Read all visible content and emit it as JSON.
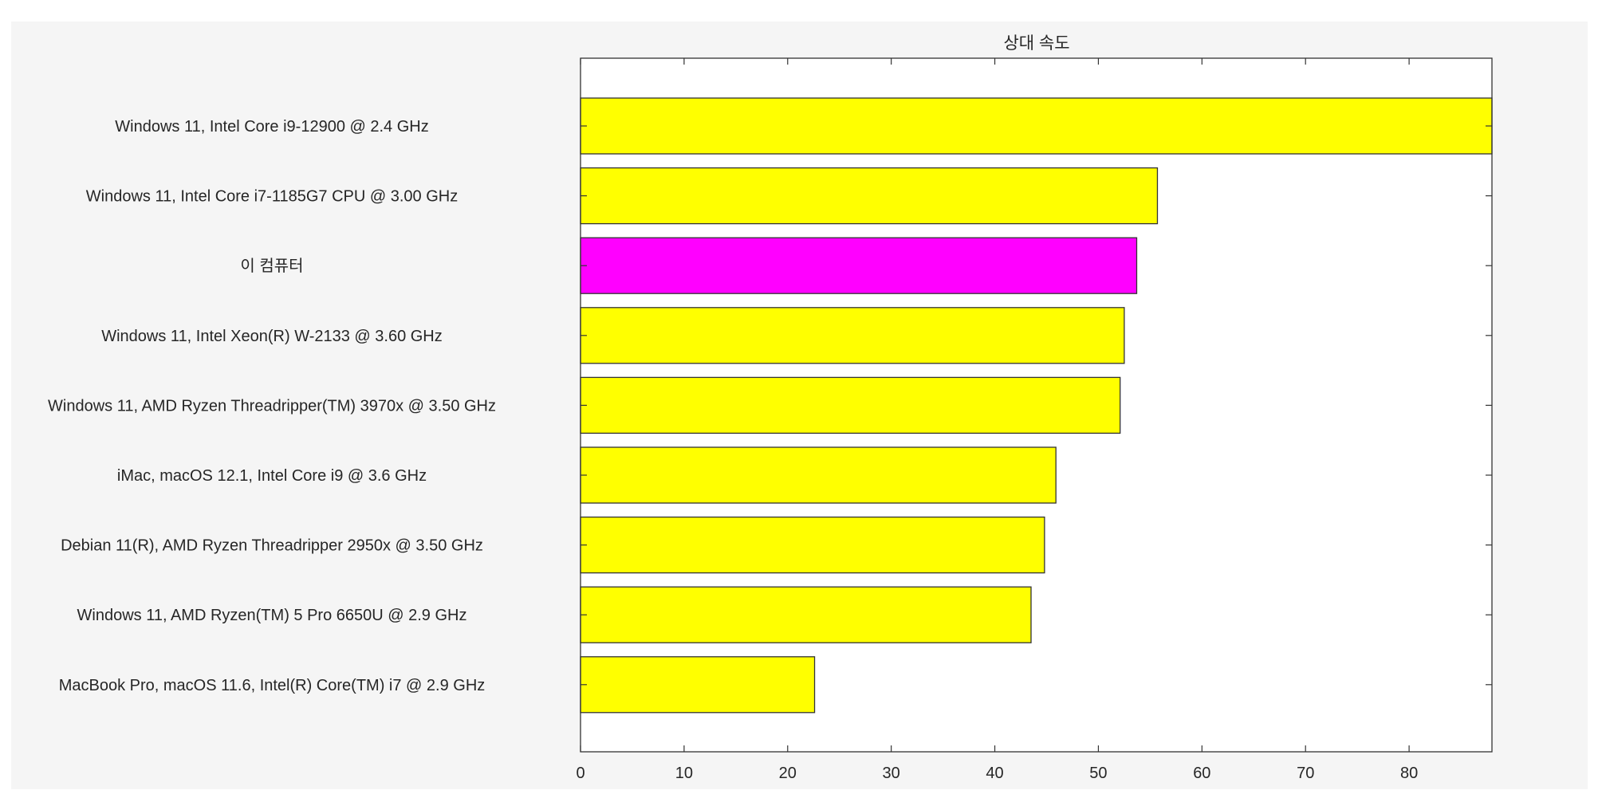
{
  "chart_data": {
    "type": "bar",
    "orientation": "horizontal",
    "title": "상대 속도",
    "xlabel": "",
    "ylabel": "",
    "xlim": [
      0,
      88
    ],
    "xticks": [
      0,
      10,
      20,
      30,
      40,
      50,
      60,
      70,
      80
    ],
    "grid": false,
    "legend": "none",
    "categories": [
      "Windows 11, Intel Core i9-12900 @ 2.4 GHz",
      "Windows 11, Intel Core i7-1185G7 CPU @ 3.00 GHz",
      "이 컴퓨터",
      "Windows 11, Intel Xeon(R) W-2133 @ 3.60 GHz",
      "Windows 11, AMD Ryzen Threadripper(TM) 3970x @ 3.50 GHz",
      "iMac, macOS 12.1, Intel Core i9 @ 3.6 GHz",
      "Debian 11(R), AMD Ryzen Threadripper 2950x @ 3.50 GHz",
      "Windows 11, AMD Ryzen(TM) 5 Pro 6650U @ 2.9 GHz",
      "MacBook Pro, macOS 11.6, Intel(R) Core(TM) i7 @ 2.9 GHz"
    ],
    "values": [
      88.0,
      55.7,
      53.7,
      52.5,
      52.1,
      45.9,
      44.8,
      43.5,
      22.6
    ],
    "highlight_index": 2,
    "colors": {
      "bar": "#ffff00",
      "highlight": "#ff00ff",
      "edge": "#333333",
      "figure_background": "#f5f5f5",
      "axes_background": "#ffffff",
      "text": "#262626"
    }
  }
}
